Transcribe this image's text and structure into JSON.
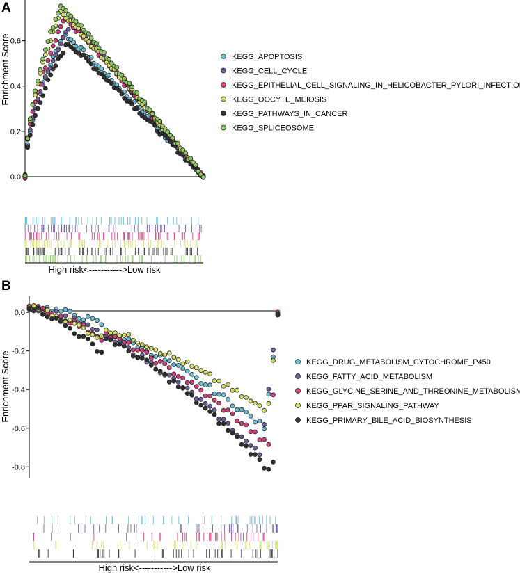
{
  "chart_data": [
    {
      "type": "scatter",
      "panel_label": "A",
      "ylabel": "Enrichment Score",
      "xlabel": "",
      "ylim": [
        0,
        0.78
      ],
      "yticks": [
        0.0,
        0.2,
        0.4,
        0.6
      ],
      "ytick_labels": [
        "0.0",
        "0.2",
        "0.4",
        "0.6"
      ],
      "grid": false,
      "legend_position": "right",
      "rank_axis_caption": "High risk<----------->Low risk",
      "series": [
        {
          "name": "KEGG_APOPTOSIS",
          "color": "#6cbfd6",
          "peak_x": 0.22,
          "peak_y": 0.63
        },
        {
          "name": "KEGG_CELL_CYCLE",
          "color": "#6f5e9a",
          "peak_x": 0.26,
          "peak_y": 0.68
        },
        {
          "name": "KEGG_EPITHELIAL_CELL_SIGNALING_IN_HELICOBACTER_PYLORI_INFECTION",
          "color": "#d53f7b",
          "peak_x": 0.22,
          "peak_y": 0.7
        },
        {
          "name": "KEGG_OOCYTE_MEIOSIS",
          "color": "#d6dc6a",
          "peak_x": 0.2,
          "peak_y": 0.73
        },
        {
          "name": "KEGG_PATHWAYS_IN_CANCER",
          "color": "#2f2f2f",
          "peak_x": 0.24,
          "peak_y": 0.59
        },
        {
          "name": "KEGG_SPLICEOSOME",
          "color": "#8ec863",
          "peak_x": 0.2,
          "peak_y": 0.76
        }
      ]
    },
    {
      "type": "scatter",
      "panel_label": "B",
      "ylabel": "Enrichment Score",
      "xlabel": "",
      "ylim": [
        -0.86,
        0.04
      ],
      "yticks": [
        0.0,
        -0.2,
        -0.4,
        -0.6,
        -0.8
      ],
      "ytick_labels": [
        "0.0",
        "-0.2",
        "-0.4",
        "-0.6",
        "-0.8"
      ],
      "grid": false,
      "legend_position": "right",
      "rank_axis_caption": "High risk<----------->Low risk",
      "series": [
        {
          "name": "KEGG_DRUG_METABOLISM_CYTOCHROME_P450",
          "color": "#6cbfd6",
          "trough_x": 0.95,
          "trough_y": -0.6
        },
        {
          "name": "KEGG_FATTY_ACID_METABOLISM",
          "color": "#6f5e9a",
          "trough_x": 0.93,
          "trough_y": -0.74
        },
        {
          "name": "KEGG_GLYCINE_SERINE_AND_THREONINE_METABOLISM",
          "color": "#d53f7b",
          "trough_x": 0.97,
          "trough_y": -0.7
        },
        {
          "name": "KEGG_PPAR_SIGNALING_PATHWAY",
          "color": "#d6dc6a",
          "trough_x": 0.96,
          "trough_y": -0.52
        },
        {
          "name": "KEGG_PRIMARY_BILE_ACID_BIOSYNTHESIS",
          "color": "#2f2f2f",
          "trough_x": 0.98,
          "trough_y": -0.84
        }
      ]
    }
  ]
}
